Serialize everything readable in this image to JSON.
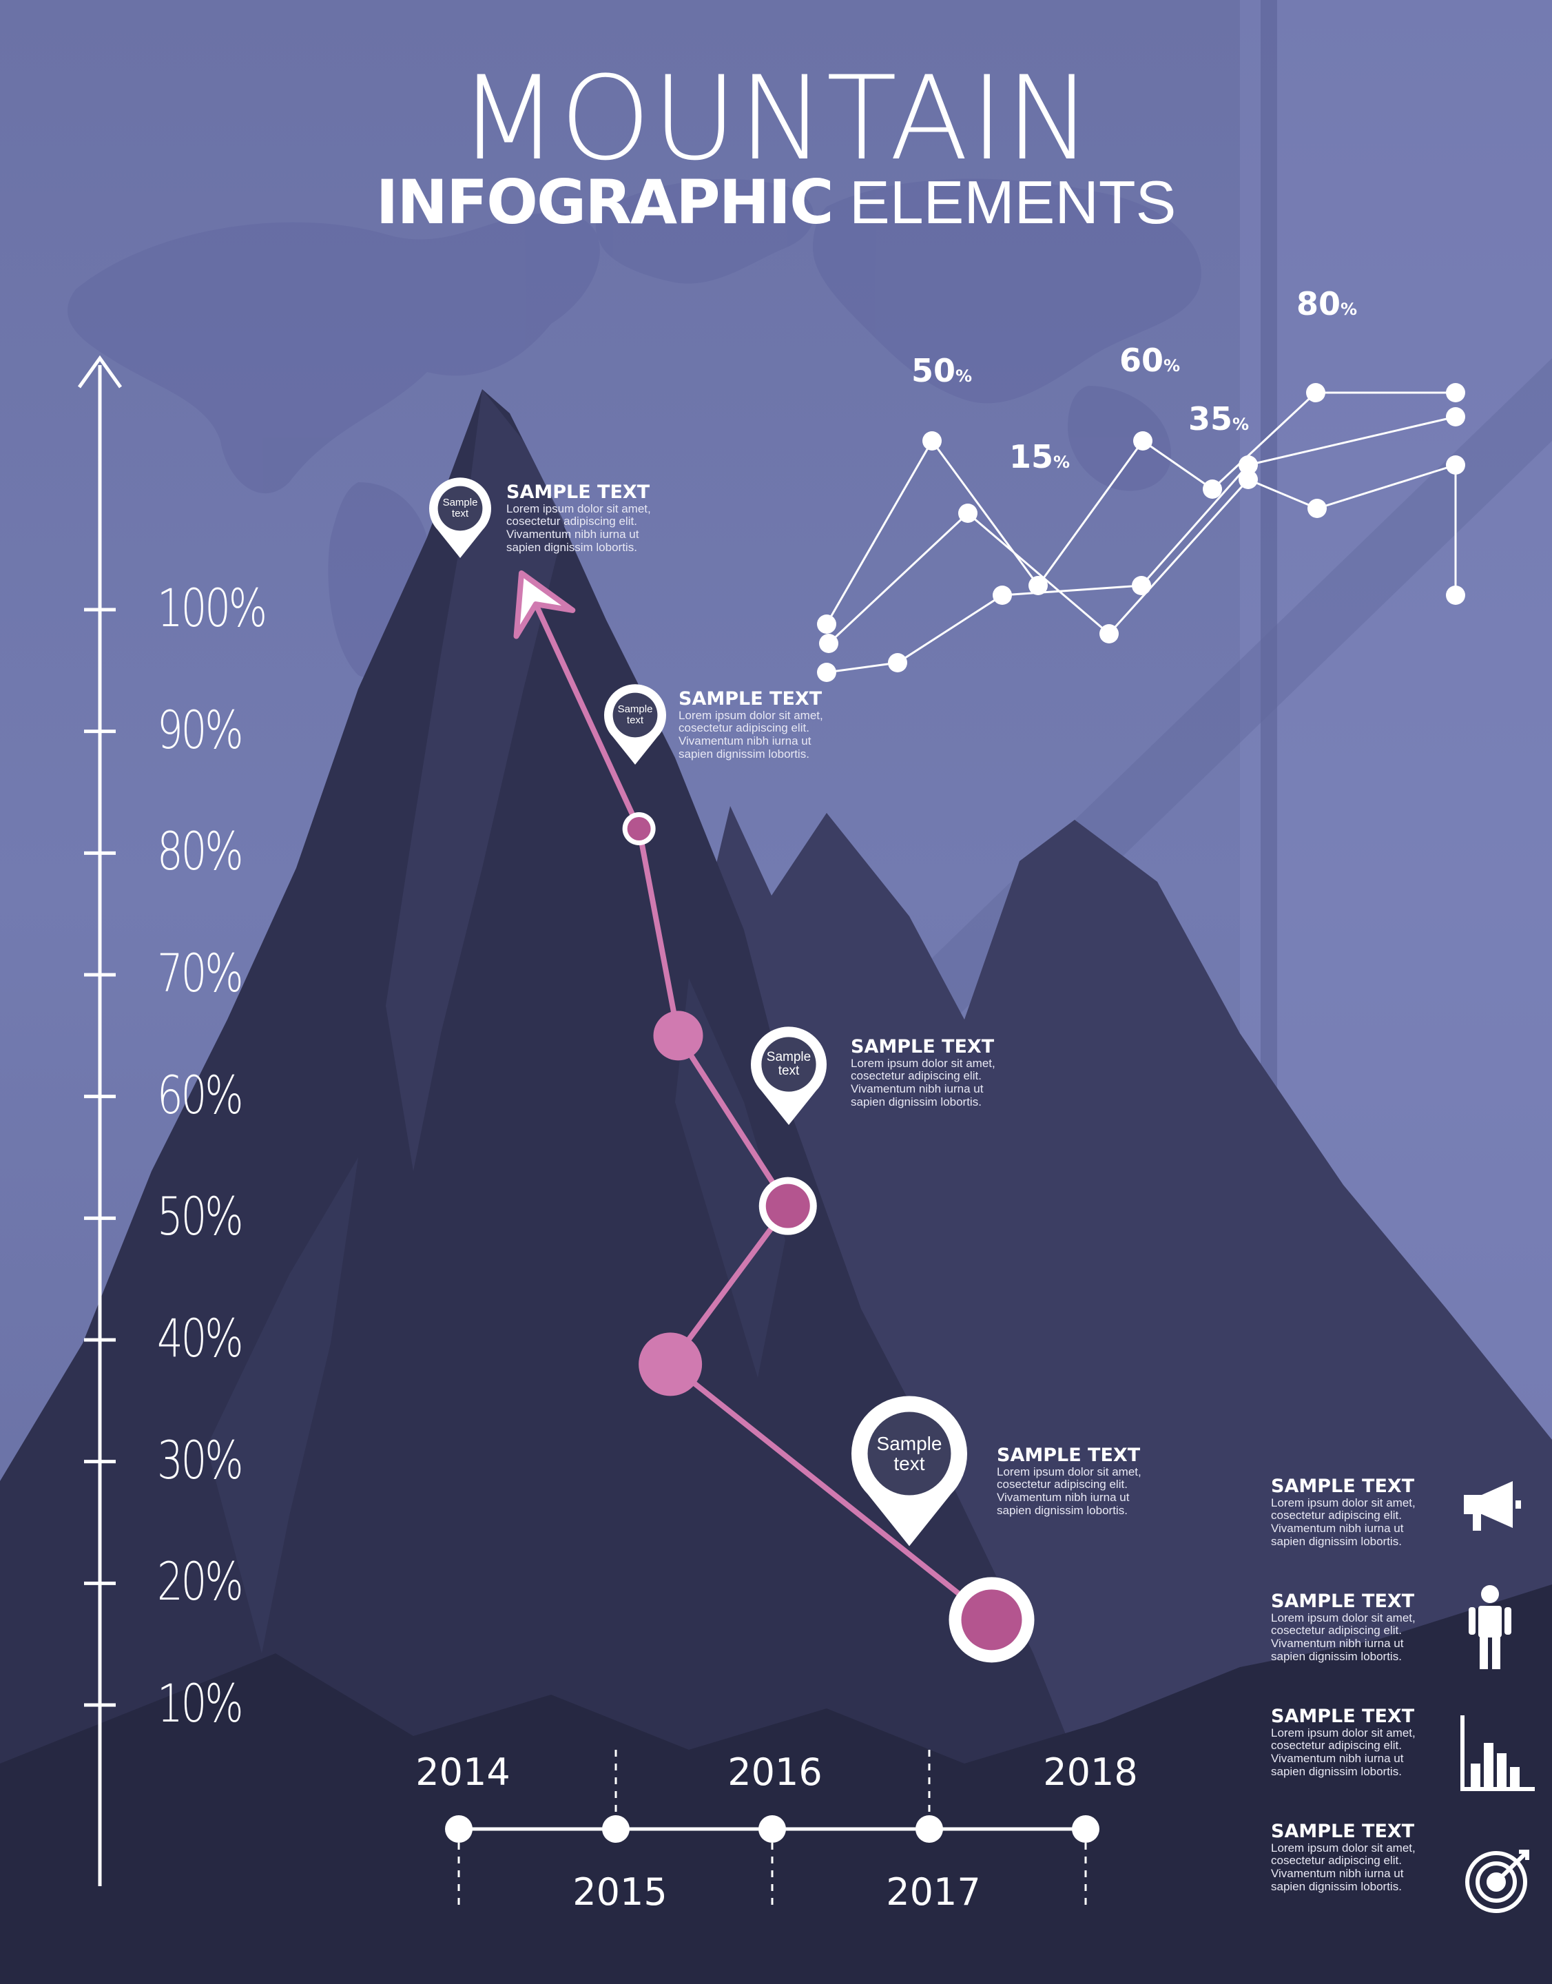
{
  "title": {
    "line1": "MOUNTAIN",
    "line2_bold": "INFOGRAPHIC",
    "line2_light": "ELEMENTS"
  },
  "colors": {
    "background": "#6f76a8",
    "mountain": "#2e304f",
    "path": "#d07ab0",
    "dot": "#b4558f",
    "white": "#ffffff"
  },
  "chart_data": [
    {
      "type": "line",
      "title": "",
      "ylabel": "",
      "yaxis_ticks": [
        "10%",
        "20%",
        "30%",
        "40%",
        "50%",
        "60%",
        "70%",
        "80%",
        "90%",
        "100%"
      ],
      "ylim": [
        0,
        110
      ],
      "xaxis_top_labels": [
        "2014",
        "2016",
        "2018"
      ],
      "xaxis_bottom_labels": [
        "2015",
        "2017"
      ],
      "x": [
        2014,
        2015,
        2016,
        2017,
        2018
      ],
      "series": [
        {
          "name": "",
          "points": [
            {
              "x": 2017.4,
              "y": 17
            },
            {
              "x": 2015.35,
              "y": 38
            },
            {
              "x": 2016.1,
              "y": 51
            },
            {
              "x": 2015.4,
              "y": 65
            },
            {
              "x": 2015.15,
              "y": 82
            },
            {
              "x": 2014.4,
              "y": 103
            }
          ]
        }
      ]
    },
    {
      "type": "line",
      "title": "",
      "value_labels": [
        "50%",
        "15%",
        "60%",
        "35%",
        "80%"
      ],
      "series": [
        {
          "name": "",
          "values": [
            62,
            100,
            70,
            100,
            90,
            110,
            110
          ]
        },
        {
          "name": "",
          "values": [
            58,
            85,
            60,
            92,
            86,
            95,
            68
          ]
        },
        {
          "name": "",
          "values": [
            52,
            54,
            68,
            70,
            95,
            105
          ]
        }
      ]
    }
  ],
  "callouts": [
    {
      "title": "SAMPLE TEXT",
      "body": "Lorem ipsum dolor sit amet, cosectetur adipiscing elit. Vivamentum nibh iurna ut sapien dignissim lobortis.",
      "pin": "Sample text"
    },
    {
      "title": "SAMPLE TEXT",
      "body": "Lorem ipsum dolor sit amet, cosectetur adipiscing elit. Vivamentum nibh iurna ut sapien dignissim lobortis.",
      "pin": "Sample text"
    },
    {
      "title": "SAMPLE TEXT",
      "body": "Lorem ipsum dolor sit amet, cosectetur adipiscing elit. Vivamentum nibh iurna ut sapien dignissim lobortis.",
      "pin": "Sample text"
    },
    {
      "title": "SAMPLE TEXT",
      "body": "Lorem ipsum dolor sit amet, cosectetur adipiscing elit. Vivamentum nibh iurna ut sapien dignissim lobortis.",
      "pin": "Sample text"
    }
  ],
  "side_items": [
    {
      "title": "SAMPLE TEXT",
      "body": "Lorem ipsum dolor sit amet, cosectetur adipiscing elit. Vivamentum nibh iurna ut sapien dignissim lobortis.",
      "icon": "megaphone-icon"
    },
    {
      "title": "SAMPLE TEXT",
      "body": "Lorem ipsum dolor sit amet, cosectetur adipiscing elit. Vivamentum nibh iurna ut sapien dignissim lobortis.",
      "icon": "person-icon"
    },
    {
      "title": "SAMPLE TEXT",
      "body": "Lorem ipsum dolor sit amet, cosectetur adipiscing elit. Vivamentum nibh iurna ut sapien dignissim lobortis.",
      "icon": "bar-chart-icon"
    },
    {
      "title": "SAMPLE TEXT",
      "body": "Lorem ipsum dolor sit amet, cosectetur adipiscing elit. Vivamentum nibh iurna ut sapien dignissim lobortis.",
      "icon": "target-icon"
    }
  ]
}
